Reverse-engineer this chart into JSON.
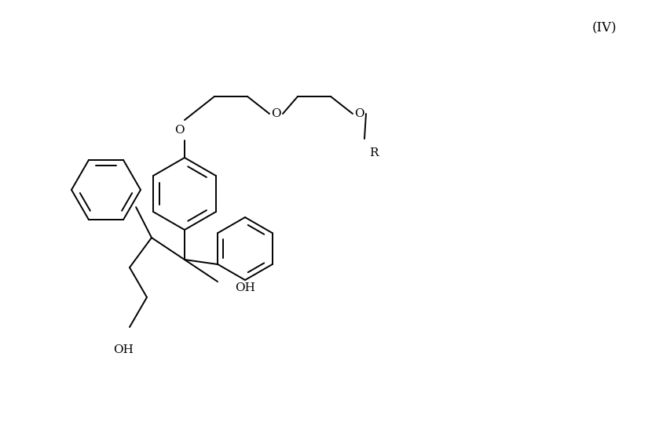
{
  "bg_color": "#ffffff",
  "line_color": "#000000",
  "lw": 1.4,
  "fs": 11,
  "fs_iv": 12,
  "label_IV": "(IV)",
  "label_OH1": "OH",
  "label_OH2": "OH",
  "label_O1": "O",
  "label_O2": "O",
  "label_O3": "O",
  "label_R": "R"
}
